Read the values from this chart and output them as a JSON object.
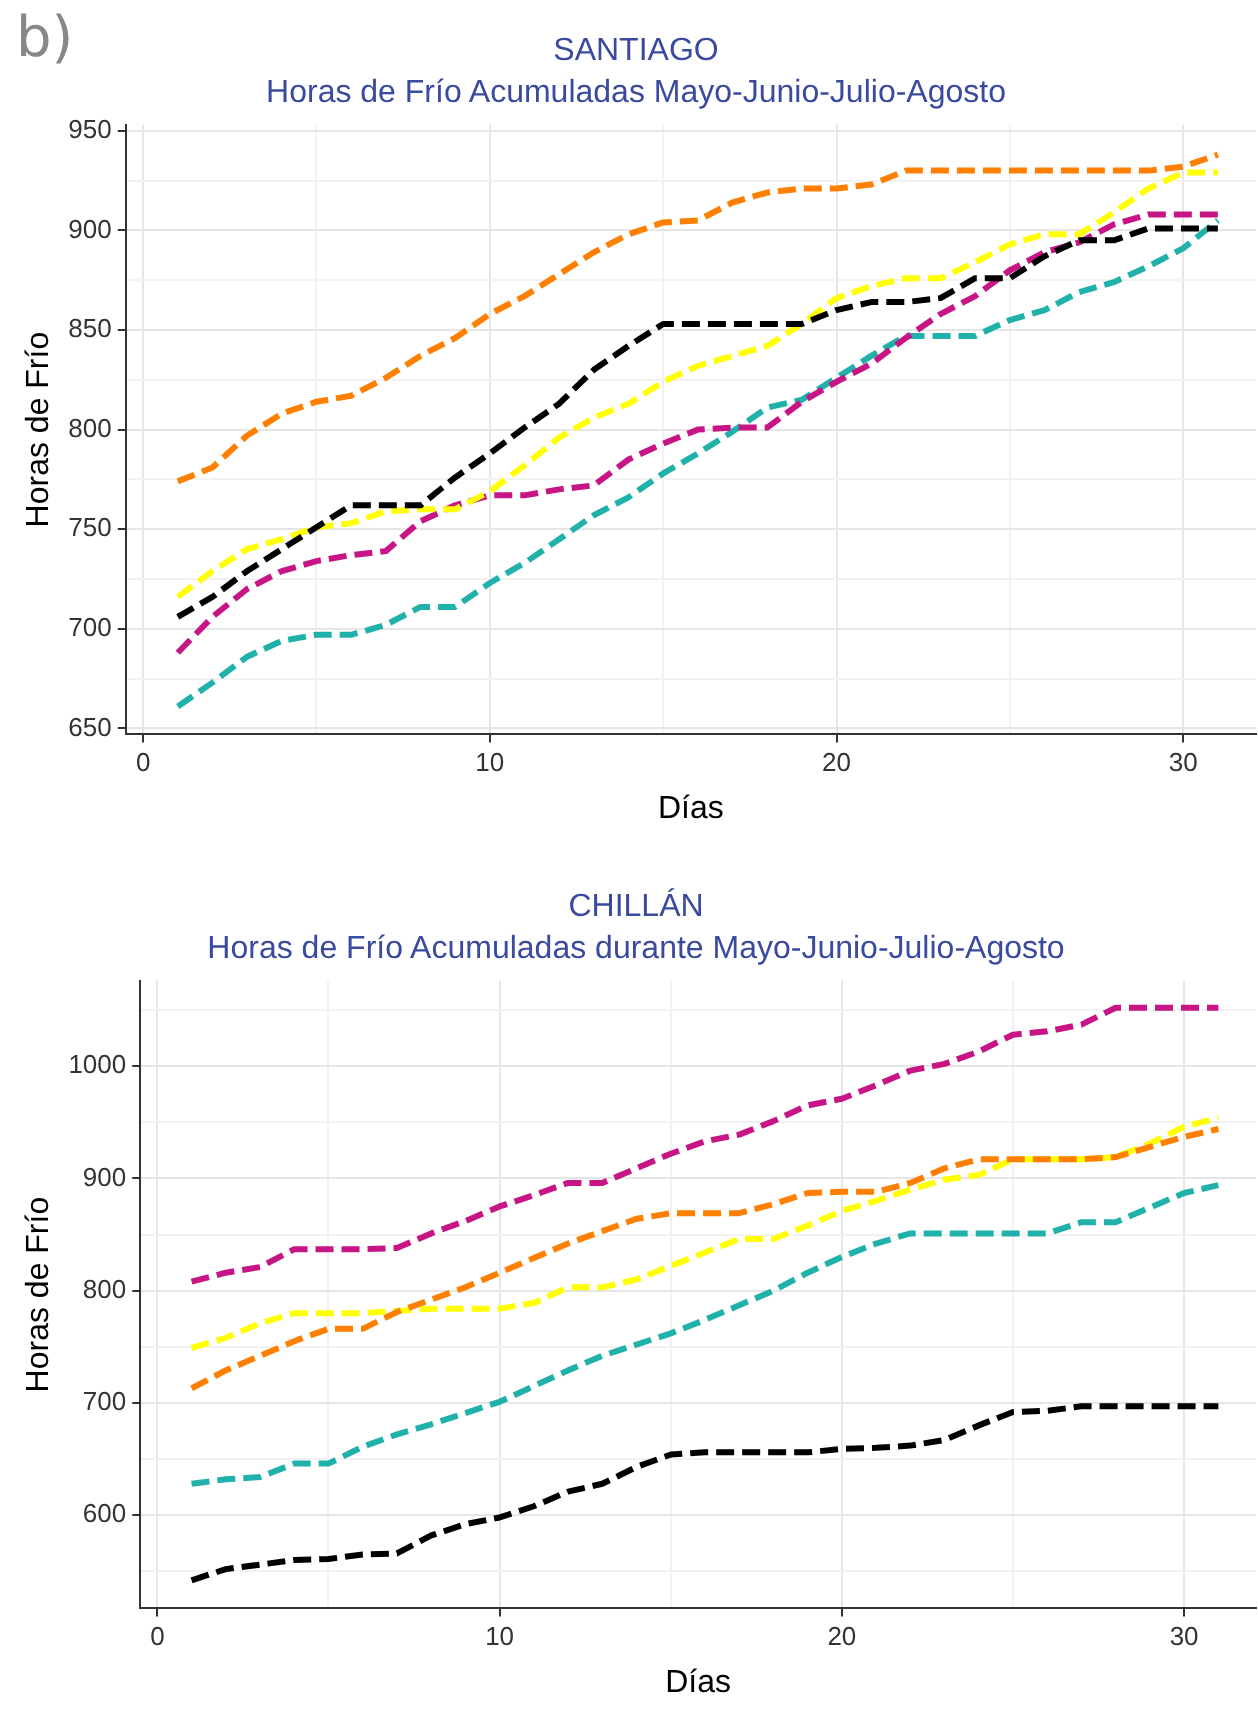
{
  "chart_data": [
    {
      "type": "line",
      "title": "SANTIAGO",
      "subtitle": "Horas de Frío Acumuladas Mayo-Junio-Julio-Agosto",
      "xlabel": "Días",
      "ylabel": "Horas de Frío",
      "annotations": [
        "b)"
      ],
      "x": [
        1,
        2,
        3,
        4,
        5,
        6,
        7,
        8,
        9,
        10,
        11,
        12,
        13,
        14,
        15,
        16,
        17,
        18,
        19,
        20,
        21,
        22,
        23,
        24,
        25,
        26,
        27,
        28,
        29,
        30,
        31
      ],
      "xlim": [
        -0.5,
        32.1
      ],
      "xticks": [
        0,
        {
          "value": 5,
          "label": null
        },
        10,
        {
          "value": 15,
          "label": null
        },
        20,
        {
          "value": 25,
          "label": null
        },
        30
      ],
      "ylim": [
        647,
        953
      ],
      "yticks": [
        650,
        {
          "value": 675,
          "label": null
        },
        700,
        {
          "value": 725,
          "label": null
        },
        750,
        {
          "value": 775,
          "label": null
        },
        800,
        {
          "value": 825,
          "label": null
        },
        850,
        {
          "value": 875,
          "label": null
        },
        900,
        {
          "value": 925,
          "label": null
        },
        950
      ],
      "grid": true,
      "legend": false,
      "line_style": "dashed",
      "marker": "none",
      "series": [
        {
          "color": "#ff7f00",
          "values": [
            774,
            781,
            797,
            808,
            814,
            817,
            826,
            837,
            846,
            858,
            867,
            878,
            889,
            898,
            904,
            905,
            914,
            919,
            921,
            921,
            923,
            930,
            930,
            930,
            930,
            930,
            930,
            930,
            930,
            932,
            938
          ]
        },
        {
          "color": "#000000",
          "values": [
            706,
            716,
            729,
            740,
            751,
            762,
            762,
            762,
            776,
            788,
            801,
            813,
            830,
            842,
            853,
            853,
            853,
            853,
            853,
            860,
            864,
            864,
            866,
            876,
            876,
            887,
            895,
            895,
            901,
            901,
            901
          ]
        },
        {
          "color": "#ffff00",
          "values": [
            716,
            729,
            740,
            745,
            751,
            753,
            759,
            760,
            760,
            769,
            782,
            796,
            806,
            813,
            824,
            832,
            837,
            842,
            853,
            866,
            872,
            876,
            876,
            884,
            893,
            898,
            898,
            909,
            921,
            929,
            929
          ]
        },
        {
          "color": "#c71585",
          "values": [
            688,
            706,
            720,
            729,
            734,
            737,
            739,
            754,
            762,
            767,
            767,
            770,
            772,
            785,
            793,
            800,
            801,
            801,
            814,
            824,
            833,
            846,
            858,
            867,
            880,
            889,
            894,
            903,
            908,
            908,
            908
          ]
        },
        {
          "color": "#20b2aa",
          "values": [
            661,
            673,
            686,
            694,
            697,
            697,
            702,
            711,
            711,
            723,
            733,
            745,
            757,
            766,
            778,
            788,
            799,
            811,
            815,
            826,
            837,
            847,
            847,
            847,
            855,
            860,
            869,
            874,
            882,
            891,
            905
          ]
        }
      ]
    },
    {
      "type": "line",
      "title": "CHILLÁN",
      "subtitle": "Horas de Frío Acumuladas durante Mayo-Junio-Julio-Agosto",
      "xlabel": "Días",
      "ylabel": "Horas de Frío",
      "x": [
        1,
        2,
        3,
        4,
        5,
        6,
        7,
        8,
        9,
        10,
        11,
        12,
        13,
        14,
        15,
        16,
        17,
        18,
        19,
        20,
        21,
        22,
        23,
        24,
        25,
        26,
        27,
        28,
        29,
        30,
        31
      ],
      "xlim": [
        -0.5,
        32.1
      ],
      "xticks": [
        0,
        {
          "value": 5,
          "label": null
        },
        10,
        {
          "value": 15,
          "label": null
        },
        20,
        {
          "value": 25,
          "label": null
        },
        30
      ],
      "ylim": [
        517,
        1076
      ],
      "yticks": [
        {
          "value": 550,
          "label": null
        },
        600,
        {
          "value": 650,
          "label": null
        },
        700,
        {
          "value": 750,
          "label": null
        },
        800,
        {
          "value": 850,
          "label": null
        },
        900,
        {
          "value": 950,
          "label": null
        },
        1000,
        {
          "value": 1050,
          "label": null
        }
      ],
      "grid": true,
      "legend": false,
      "line_style": "dashed",
      "marker": "none",
      "series": [
        {
          "color": "#c71585",
          "values": [
            808,
            816,
            821,
            837,
            837,
            837,
            838,
            851,
            862,
            875,
            885,
            896,
            896,
            909,
            922,
            933,
            939,
            951,
            965,
            971,
            983,
            996,
            1002,
            1013,
            1028,
            1031,
            1037,
            1052,
            1052,
            1052,
            1052
          ]
        },
        {
          "color": "#ff7f00",
          "values": [
            713,
            729,
            742,
            755,
            766,
            766,
            781,
            792,
            803,
            816,
            829,
            842,
            853,
            864,
            869,
            869,
            869,
            877,
            887,
            888,
            888,
            896,
            909,
            917,
            917,
            917,
            917,
            919,
            928,
            937,
            944
          ]
        },
        {
          "color": "#ffff00",
          "values": [
            749,
            758,
            771,
            780,
            780,
            780,
            782,
            784,
            784,
            784,
            789,
            803,
            803,
            810,
            822,
            834,
            846,
            846,
            858,
            871,
            880,
            890,
            899,
            903,
            917,
            917,
            917,
            919,
            931,
            946,
            954
          ]
        },
        {
          "color": "#20b2aa",
          "values": [
            628,
            632,
            634,
            646,
            646,
            661,
            672,
            681,
            691,
            701,
            715,
            729,
            742,
            752,
            762,
            774,
            787,
            800,
            816,
            830,
            842,
            851,
            851,
            851,
            851,
            851,
            861,
            861,
            874,
            887,
            894
          ]
        },
        {
          "color": "#000000",
          "values": [
            542,
            552,
            556,
            560,
            561,
            565,
            566,
            582,
            592,
            598,
            608,
            621,
            628,
            643,
            654,
            656,
            656,
            656,
            656,
            659,
            660,
            662,
            667,
            680,
            692,
            693,
            697,
            697,
            697,
            697,
            697
          ]
        }
      ]
    }
  ]
}
